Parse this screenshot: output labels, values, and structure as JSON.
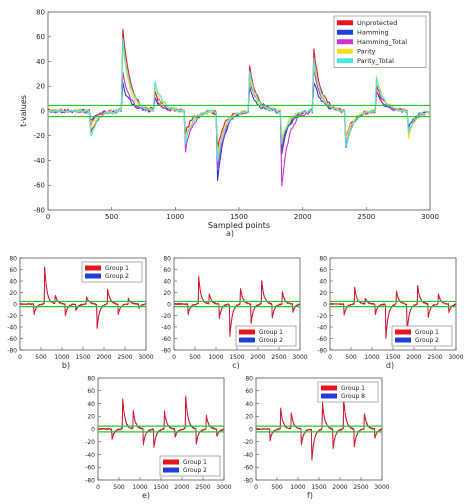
{
  "chart_data": [
    {
      "id": "a",
      "type": "line",
      "caption": "a)",
      "xlabel": "Sampled points",
      "ylabel": "t-values",
      "xlim": [
        0,
        3000
      ],
      "ylim": [
        -80,
        80
      ],
      "xticks": [
        "0",
        "500",
        "1000",
        "1500",
        "2000",
        "2500",
        "3000"
      ],
      "yticks": [
        "80",
        "60",
        "40",
        "20",
        "0",
        "-20",
        "-40",
        "-60",
        "-80"
      ],
      "threshold_lines": [
        4.5,
        -4.5
      ],
      "threshold_color": "#22cc22",
      "legend_position": "top-right",
      "series": [
        {
          "name": "Unprotected",
          "color": "#e8141c",
          "events": [
            [
              330,
              -20
            ],
            [
              580,
              78
            ],
            [
              830,
              18
            ],
            [
              1080,
              -18
            ],
            [
              1330,
              -30
            ],
            [
              1580,
              38
            ],
            [
              1830,
              -34
            ],
            [
              2080,
              58
            ],
            [
              2330,
              -26
            ],
            [
              2580,
              22
            ],
            [
              2830,
              -17
            ]
          ]
        },
        {
          "name": "Hamming",
          "color": "#1f3fd6",
          "events": [
            [
              330,
              -8
            ],
            [
              580,
              25
            ],
            [
              830,
              12
            ],
            [
              1080,
              -25
            ],
            [
              1330,
              -57
            ],
            [
              1580,
              20
            ],
            [
              1830,
              -38
            ],
            [
              2080,
              28
            ],
            [
              2330,
              -35
            ],
            [
              2580,
              16
            ],
            [
              2830,
              -14
            ]
          ]
        },
        {
          "name": "Hamming_Total",
          "color": "#cc33cc",
          "events": [
            [
              330,
              -12
            ],
            [
              580,
              35
            ],
            [
              830,
              14
            ],
            [
              1080,
              -32
            ],
            [
              1330,
              -48
            ],
            [
              1580,
              28
            ],
            [
              1830,
              -68
            ],
            [
              2080,
              40
            ],
            [
              2330,
              -34
            ],
            [
              2580,
              18
            ],
            [
              2830,
              -20
            ]
          ]
        },
        {
          "name": "Parity",
          "color": "#f0e020",
          "events": [
            [
              330,
              -15
            ],
            [
              580,
              60
            ],
            [
              830,
              25
            ],
            [
              1080,
              -22
            ],
            [
              1330,
              -36
            ],
            [
              1580,
              30
            ],
            [
              1830,
              -25
            ],
            [
              2080,
              45
            ],
            [
              2330,
              -27
            ],
            [
              2580,
              30
            ],
            [
              2830,
              -22
            ]
          ]
        },
        {
          "name": "Parity_Total",
          "color": "#50e8d8",
          "events": [
            [
              330,
              -24
            ],
            [
              580,
              68
            ],
            [
              830,
              28
            ],
            [
              1080,
              -26
            ],
            [
              1330,
              -42
            ],
            [
              1580,
              34
            ],
            [
              1830,
              -30
            ],
            [
              2080,
              50
            ],
            [
              2330,
              -36
            ],
            [
              2580,
              26
            ],
            [
              2830,
              -18
            ]
          ]
        }
      ]
    },
    {
      "id": "b",
      "type": "line",
      "caption": "b)",
      "xlim": [
        0,
        3000
      ],
      "ylim": [
        -80,
        80
      ],
      "xticks": [
        "0",
        "500",
        "1000",
        "1500",
        "2000",
        "2500",
        "3000"
      ],
      "yticks": [
        "80",
        "60",
        "40",
        "20",
        "0",
        "-20",
        "-40",
        "-60",
        "-80"
      ],
      "threshold_lines": [
        4.5,
        -4.5
      ],
      "legend_position": "top-right",
      "series": [
        {
          "name": "Group 1",
          "color": "#e8141c",
          "events": [
            [
              330,
              -20
            ],
            [
              580,
              75
            ],
            [
              830,
              18
            ],
            [
              1080,
              -20
            ],
            [
              1330,
              -12
            ],
            [
              1580,
              14
            ],
            [
              1830,
              -48
            ],
            [
              2080,
              30
            ],
            [
              2330,
              -22
            ],
            [
              2580,
              10
            ],
            [
              2830,
              -8
            ]
          ]
        },
        {
          "name": "Group 2",
          "color": "#1f3fd6",
          "events": [
            [
              330,
              -19
            ],
            [
              580,
              74
            ],
            [
              830,
              17
            ],
            [
              1080,
              -19
            ],
            [
              1330,
              -11
            ],
            [
              1580,
              13
            ],
            [
              1830,
              -47
            ],
            [
              2080,
              29
            ],
            [
              2330,
              -21
            ],
            [
              2580,
              9
            ],
            [
              2830,
              -7
            ]
          ]
        }
      ]
    },
    {
      "id": "c",
      "type": "line",
      "caption": "c)",
      "xlim": [
        0,
        3000
      ],
      "ylim": [
        -80,
        80
      ],
      "xticks": [
        "0",
        "500",
        "1000",
        "1500",
        "2000",
        "2500",
        "3000"
      ],
      "yticks": [
        "80",
        "60",
        "40",
        "20",
        "0",
        "-20",
        "-40",
        "-60",
        "-80"
      ],
      "threshold_lines": [
        4.5,
        -4.5
      ],
      "legend_position": "bottom-right",
      "series": [
        {
          "name": "Group 1",
          "color": "#e8141c",
          "events": [
            [
              330,
              -20
            ],
            [
              580,
              55
            ],
            [
              830,
              20
            ],
            [
              1080,
              -25
            ],
            [
              1330,
              -58
            ],
            [
              1580,
              30
            ],
            [
              1830,
              -38
            ],
            [
              2080,
              48
            ],
            [
              2330,
              -30
            ],
            [
              2580,
              22
            ],
            [
              2830,
              -15
            ]
          ]
        },
        {
          "name": "Group 2",
          "color": "#1f3fd6",
          "events": [
            [
              330,
              -19
            ],
            [
              580,
              54
            ],
            [
              830,
              19
            ],
            [
              1080,
              -24
            ],
            [
              1330,
              -57
            ],
            [
              1580,
              29
            ],
            [
              1830,
              -37
            ],
            [
              2080,
              47
            ],
            [
              2330,
              -29
            ],
            [
              2580,
              21
            ],
            [
              2830,
              -14
            ]
          ]
        }
      ]
    },
    {
      "id": "d",
      "type": "line",
      "caption": "d)",
      "xlim": [
        0,
        3000
      ],
      "ylim": [
        -80,
        80
      ],
      "xticks": [
        "0",
        "500",
        "1000",
        "1500",
        "2000",
        "2500",
        "3000"
      ],
      "yticks": [
        "80",
        "60",
        "40",
        "20",
        "0",
        "-20",
        "-40",
        "-60",
        "-80"
      ],
      "threshold_lines": [
        4.5,
        -4.5
      ],
      "legend_position": "bottom-right",
      "series": [
        {
          "name": "Group 1",
          "color": "#e8141c",
          "events": [
            [
              330,
              -22
            ],
            [
              580,
              34
            ],
            [
              830,
              12
            ],
            [
              1080,
              -18
            ],
            [
              1330,
              -62
            ],
            [
              1580,
              25
            ],
            [
              1830,
              -55
            ],
            [
              2080,
              38
            ],
            [
              2330,
              -28
            ],
            [
              2580,
              18
            ],
            [
              2830,
              -15
            ]
          ]
        },
        {
          "name": "Group 2",
          "color": "#1f3fd6",
          "events": [
            [
              330,
              -21
            ],
            [
              580,
              33
            ],
            [
              830,
              11
            ],
            [
              1080,
              -17
            ],
            [
              1330,
              -61
            ],
            [
              1580,
              24
            ],
            [
              1830,
              -54
            ],
            [
              2080,
              37
            ],
            [
              2330,
              -27
            ],
            [
              2580,
              17
            ],
            [
              2830,
              -14
            ]
          ]
        }
      ]
    },
    {
      "id": "e",
      "type": "line",
      "caption": "e)",
      "xlim": [
        0,
        3000
      ],
      "ylim": [
        -80,
        80
      ],
      "xticks": [
        "0",
        "500",
        "1000",
        "1500",
        "2000",
        "2500",
        "3000"
      ],
      "yticks": [
        "80",
        "60",
        "40",
        "20",
        "0",
        "-20",
        "-40",
        "-60",
        "-80"
      ],
      "threshold_lines": [
        4.5,
        -4.5
      ],
      "legend_position": "bottom-right",
      "series": [
        {
          "name": "Group 1",
          "color": "#e8141c",
          "events": [
            [
              330,
              -18
            ],
            [
              580,
              55
            ],
            [
              830,
              34
            ],
            [
              1080,
              -25
            ],
            [
              1330,
              -30
            ],
            [
              1580,
              30
            ],
            [
              1830,
              -15
            ],
            [
              2080,
              60
            ],
            [
              2330,
              -28
            ],
            [
              2580,
              22
            ],
            [
              2830,
              -12
            ]
          ]
        },
        {
          "name": "Group 2",
          "color": "#1f3fd6",
          "events": [
            [
              330,
              -17
            ],
            [
              580,
              54
            ],
            [
              830,
              33
            ],
            [
              1080,
              -24
            ],
            [
              1330,
              -29
            ],
            [
              1580,
              29
            ],
            [
              1830,
              -14
            ],
            [
              2080,
              59
            ],
            [
              2330,
              -27
            ],
            [
              2580,
              21
            ],
            [
              2830,
              -11
            ]
          ]
        }
      ]
    },
    {
      "id": "f",
      "type": "line",
      "caption": "f)",
      "xlim": [
        0,
        3000
      ],
      "ylim": [
        -80,
        80
      ],
      "xticks": [
        "0",
        "500",
        "1000",
        "1500",
        "2000",
        "2500",
        "3000"
      ],
      "yticks": [
        "80",
        "60",
        "40",
        "20",
        "0",
        "-20",
        "-40",
        "-60",
        "-80"
      ],
      "threshold_lines": [
        4.5,
        -4.5
      ],
      "legend_position": "top-right",
      "series": [
        {
          "name": "Group 1",
          "color": "#e8141c",
          "events": [
            [
              330,
              -20
            ],
            [
              580,
              38
            ],
            [
              830,
              30
            ],
            [
              1080,
              -25
            ],
            [
              1330,
              -50
            ],
            [
              1580,
              45
            ],
            [
              1830,
              -35
            ],
            [
              2080,
              55
            ],
            [
              2330,
              -35
            ],
            [
              2580,
              25
            ],
            [
              2830,
              -15
            ]
          ]
        },
        {
          "name": "Group 8",
          "color": "#1f3fd6",
          "events": [
            [
              330,
              -19
            ],
            [
              580,
              37
            ],
            [
              830,
              29
            ],
            [
              1080,
              -24
            ],
            [
              1330,
              -49
            ],
            [
              1580,
              44
            ],
            [
              1830,
              -34
            ],
            [
              2080,
              54
            ],
            [
              2330,
              -34
            ],
            [
              2580,
              24
            ],
            [
              2830,
              -14
            ]
          ]
        }
      ]
    }
  ]
}
